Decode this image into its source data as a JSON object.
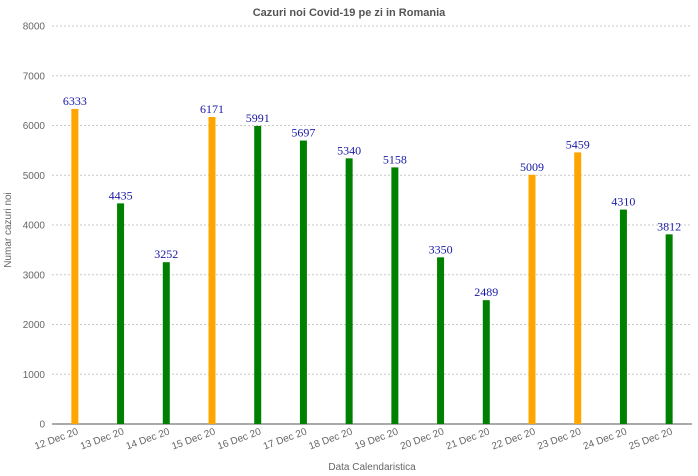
{
  "chart_data": {
    "type": "bar",
    "title": "Cazuri noi Covid-19 pe zi in Romania",
    "xlabel": "Data Calendaristica",
    "ylabel": "Numar cazuri noi",
    "ylim": [
      0,
      8000
    ],
    "yticks": [
      0,
      1000,
      2000,
      3000,
      4000,
      5000,
      6000,
      7000,
      8000
    ],
    "grid": true,
    "categories": [
      "12 Dec 20",
      "13 Dec 20",
      "14 Dec 20",
      "15 Dec 20",
      "16 Dec 20",
      "17 Dec 20",
      "18 Dec 20",
      "19 Dec 20",
      "20 Dec 20",
      "21 Dec 20",
      "22 Dec 20",
      "23 Dec 20",
      "24 Dec 20",
      "25 Dec 20"
    ],
    "values": [
      6333,
      4435,
      3252,
      6171,
      5991,
      5697,
      5340,
      5158,
      3350,
      2489,
      5009,
      5459,
      4310,
      3812
    ],
    "bar_colors": [
      "#ffa500",
      "#008000",
      "#008000",
      "#ffa500",
      "#008000",
      "#008000",
      "#008000",
      "#008000",
      "#008000",
      "#008000",
      "#ffa500",
      "#ffa500",
      "#008000",
      "#008000"
    ],
    "data_labels": [
      "6333",
      "4435",
      "3252",
      "6171",
      "5991",
      "5697",
      "5340",
      "5158",
      "3350",
      "2489",
      "5009",
      "5459",
      "4310",
      "3812"
    ]
  }
}
